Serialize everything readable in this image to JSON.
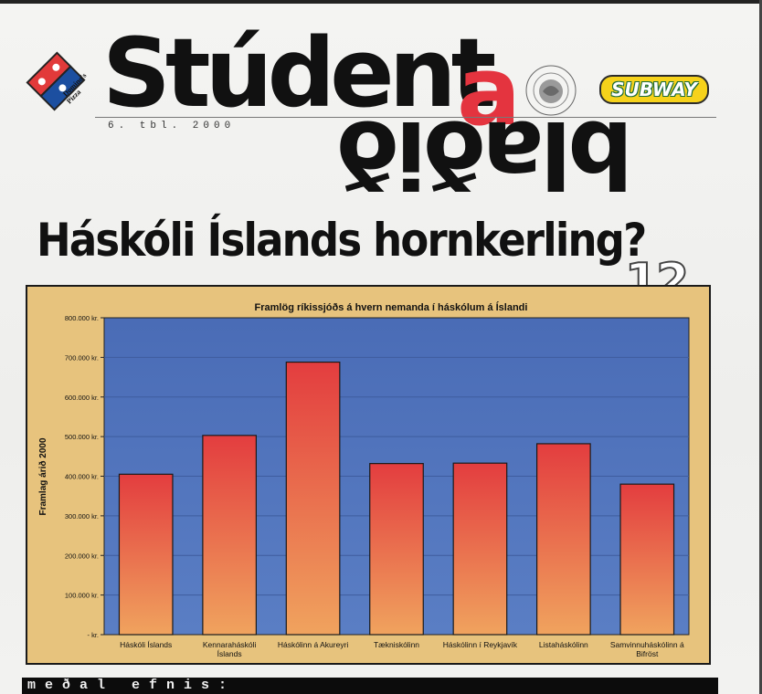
{
  "masthead": {
    "title_main": "Stúdent",
    "title_accent": "a",
    "title_sub": "blaðið",
    "issue": "6. tbl. 2000"
  },
  "sponsors": {
    "left_logo": "Domino's Pizza",
    "left_logo_line1": "Domino's",
    "left_logo_line2": "Pizza",
    "right_logo": "SUBWAY"
  },
  "headline": "Háskóli Íslands hornkerling?",
  "page_number": "12",
  "bottom_bar": "meðal efnis:",
  "colors": {
    "plot_bg": "#4f72b8",
    "frame_bg": "#e7c37d",
    "bar_top": "#e33d3f",
    "bar_bottom": "#f0a35e",
    "accent_red": "#e4343f"
  },
  "chart_data": {
    "type": "bar",
    "title": "Framlög ríkissjóðs á hvern nemanda í háskólum á Íslandi",
    "ylabel": "Framlag árið 2000",
    "xlabel": "",
    "ylim": [
      0,
      800000
    ],
    "yticks": [
      {
        "value": 0,
        "label": "-   kr."
      },
      {
        "value": 100000,
        "label": "100.000 kr."
      },
      {
        "value": 200000,
        "label": "200.000 kr."
      },
      {
        "value": 300000,
        "label": "300.000 kr."
      },
      {
        "value": 400000,
        "label": "400.000 kr."
      },
      {
        "value": 500000,
        "label": "500.000 kr."
      },
      {
        "value": 600000,
        "label": "600.000 kr."
      },
      {
        "value": 700000,
        "label": "700.000 kr."
      },
      {
        "value": 800000,
        "label": "800.000 kr."
      }
    ],
    "categories": [
      [
        "Háskóli Íslands"
      ],
      [
        "Kennaraháskóli",
        "Íslands"
      ],
      [
        "Háskólinn á Akureyri"
      ],
      [
        "Tækniskólinn"
      ],
      [
        "Háskólinn í Reykjavík"
      ],
      [
        "Listaháskólinn"
      ],
      [
        "Samvinnuháskólinn á",
        "Bifröst"
      ]
    ],
    "values": [
      405000,
      503000,
      688000,
      432000,
      433000,
      482000,
      380000
    ],
    "grid": true,
    "legend": "none"
  }
}
